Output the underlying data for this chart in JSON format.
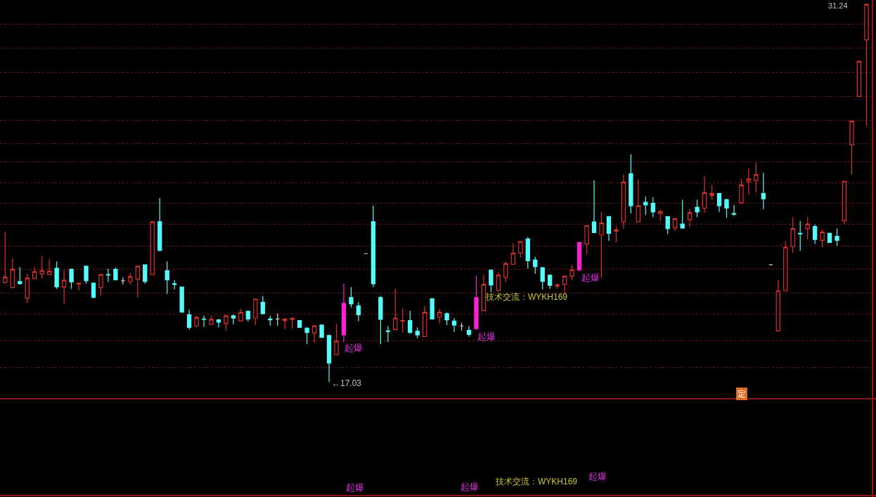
{
  "chart_data": {
    "type": "candlestick",
    "categories": [
      null,
      null,
      null,
      null,
      null,
      null,
      null,
      null,
      null,
      null,
      null,
      null,
      null,
      null,
      null,
      null,
      null,
      null,
      null,
      null,
      null,
      null,
      null,
      null,
      null,
      null,
      null,
      null,
      null,
      null,
      null,
      null,
      null,
      null,
      null,
      null,
      null,
      null,
      null,
      null,
      null,
      null,
      null,
      null,
      null,
      null,
      null,
      null,
      null,
      null,
      null,
      null,
      null,
      null,
      null,
      null,
      null,
      null,
      null,
      null,
      null,
      null,
      null,
      null,
      null,
      null,
      null,
      null,
      null,
      null,
      null,
      null,
      null,
      null,
      null,
      null,
      null,
      null,
      null,
      null,
      null,
      null,
      null,
      null,
      null,
      null,
      null,
      null,
      null,
      null,
      null,
      null,
      null,
      null,
      null,
      null,
      null,
      null,
      null,
      null,
      null,
      null,
      null,
      null,
      null,
      null,
      null,
      null,
      null,
      null,
      null,
      null,
      null,
      null,
      null,
      null,
      null,
      null
    ],
    "ohlc": [
      [
        20.77,
        22.67,
        20.73,
        20.97
      ],
      [
        20.58,
        21.69,
        20.58,
        21.27
      ],
      [
        20.81,
        21.35,
        20.7,
        20.73
      ],
      [
        20.18,
        21.1,
        19.99,
        20.94
      ],
      [
        20.92,
        21.36,
        20.9,
        21.18
      ],
      [
        21.1,
        21.76,
        20.92,
        21.22
      ],
      [
        21.07,
        21.66,
        21.07,
        21.2
      ],
      [
        21.31,
        21.56,
        20.53,
        20.61
      ],
      [
        20.61,
        21.24,
        19.97,
        20.86
      ],
      [
        21.27,
        21.29,
        20.53,
        20.79
      ],
      [
        20.72,
        20.75,
        20.47,
        20.75
      ],
      [
        21.39,
        21.39,
        20.73,
        20.84
      ],
      [
        20.75,
        20.77,
        20.18,
        20.21
      ],
      [
        20.58,
        21.1,
        20.29,
        21.07
      ],
      [
        21.07,
        21.29,
        20.79,
        21.05
      ],
      [
        21.27,
        21.33,
        20.86,
        20.87
      ],
      [
        20.84,
        20.96,
        20.7,
        20.84
      ],
      [
        20.81,
        21.13,
        20.7,
        20.99
      ],
      [
        20.9,
        21.39,
        20.21,
        21.39
      ],
      [
        21.44,
        21.46,
        20.73,
        20.81
      ],
      [
        21.07,
        23.06,
        21.07,
        23.06
      ],
      [
        23.06,
        23.95,
        21.94,
        21.98
      ],
      [
        21.22,
        21.56,
        20.35,
        20.87
      ],
      [
        20.73,
        20.86,
        20.51,
        20.7
      ],
      [
        20.6,
        20.6,
        19.66,
        19.66
      ],
      [
        19.56,
        19.75,
        19.0,
        19.08
      ],
      [
        19.14,
        19.52,
        19.08,
        19.46
      ],
      [
        19.4,
        19.52,
        19.11,
        19.39
      ],
      [
        19.2,
        19.52,
        19.2,
        19.39
      ],
      [
        19.37,
        19.39,
        19.08,
        19.28
      ],
      [
        19.23,
        19.56,
        18.97,
        19.52
      ],
      [
        19.52,
        19.56,
        19.2,
        19.43
      ],
      [
        19.32,
        19.78,
        19.32,
        19.65
      ],
      [
        19.69,
        19.71,
        19.3,
        19.4
      ],
      [
        19.43,
        20.16,
        19.17,
        20.15
      ],
      [
        20.03,
        20.27,
        19.58,
        19.6
      ],
      [
        19.4,
        19.52,
        19.14,
        19.37
      ],
      [
        19.4,
        19.6,
        19.14,
        19.4
      ],
      [
        19.34,
        19.4,
        19.02,
        19.4
      ],
      [
        19.39,
        19.43,
        19.04,
        19.43
      ],
      [
        19.34,
        19.36,
        19.06,
        19.08
      ],
      [
        19.06,
        19.08,
        18.45,
        18.89
      ],
      [
        18.87,
        19.17,
        18.52,
        19.14
      ],
      [
        19.17,
        19.2,
        18.69,
        18.71
      ],
      [
        18.78,
        18.8,
        17.03,
        17.74
      ],
      [
        18.05,
        19.2,
        18.05,
        18.57
      ],
      [
        18.8,
        20.73,
        18.52,
        19.99
      ],
      [
        20.21,
        20.6,
        19.84,
        19.97
      ],
      [
        19.89,
        20.03,
        19.32,
        19.56
      ],
      [
        21.86,
        21.86,
        21.86,
        21.86
      ],
      [
        23.06,
        23.66,
        20.6,
        20.73
      ],
      [
        20.21,
        20.27,
        18.45,
        19.39
      ],
      [
        18.95,
        19.13,
        18.54,
        18.93
      ],
      [
        19.0,
        20.53,
        19.0,
        19.43
      ],
      [
        19.32,
        19.8,
        18.89,
        19.34
      ],
      [
        19.34,
        19.71,
        18.85,
        18.89
      ],
      [
        18.94,
        19.08,
        18.68,
        18.8
      ],
      [
        18.74,
        19.89,
        18.74,
        19.65
      ],
      [
        20.16,
        20.18,
        19.39,
        19.4
      ],
      [
        19.47,
        19.78,
        19.23,
        19.65
      ],
      [
        19.6,
        19.65,
        19.17,
        19.37
      ],
      [
        19.32,
        19.43,
        18.91,
        19.17
      ],
      [
        19.14,
        19.26,
        18.97,
        19.14
      ],
      [
        18.97,
        19.14,
        18.74,
        18.82
      ],
      [
        19.04,
        21.03,
        19.0,
        20.21
      ],
      [
        19.71,
        21.07,
        19.71,
        20.7
      ],
      [
        21.24,
        21.24,
        20.42,
        20.68
      ],
      [
        20.47,
        21.16,
        20.47,
        21.05
      ],
      [
        20.96,
        21.56,
        20.79,
        21.48
      ],
      [
        21.46,
        22.24,
        21.46,
        21.88
      ],
      [
        21.88,
        22.33,
        21.72,
        22.31
      ],
      [
        22.41,
        22.48,
        21.29,
        21.59
      ],
      [
        21.62,
        21.74,
        21.1,
        21.37
      ],
      [
        21.33,
        21.36,
        20.51,
        20.81
      ],
      [
        21.05,
        21.05,
        20.53,
        20.67
      ],
      [
        20.64,
        20.73,
        20.53,
        20.68
      ],
      [
        20.7,
        21.03,
        20.35,
        21.01
      ],
      [
        21.01,
        21.44,
        20.86,
        21.24
      ],
      [
        21.24,
        22.28,
        21.2,
        22.28
      ],
      [
        22.22,
        22.92,
        21.84,
        22.91
      ],
      [
        23.05,
        24.61,
        22.65,
        22.65
      ],
      [
        22.56,
        23.44,
        20.95,
        23.01
      ],
      [
        23.25,
        23.27,
        22.34,
        22.62
      ],
      [
        22.71,
        22.88,
        22.28,
        22.75
      ],
      [
        23.05,
        24.84,
        22.8,
        24.55
      ],
      [
        24.87,
        25.6,
        23.37,
        23.66
      ],
      [
        23.05,
        24.65,
        23.05,
        23.66
      ],
      [
        23.79,
        24.01,
        23.31,
        23.69
      ],
      [
        23.75,
        23.98,
        23.23,
        23.43
      ],
      [
        23.36,
        23.51,
        23.1,
        23.44
      ],
      [
        23.25,
        23.27,
        22.6,
        22.8
      ],
      [
        22.82,
        23.2,
        22.71,
        23.17
      ],
      [
        22.97,
        23.88,
        22.82,
        22.82
      ],
      [
        23.14,
        23.53,
        22.86,
        23.4
      ],
      [
        23.6,
        23.89,
        23.23,
        23.43
      ],
      [
        23.57,
        24.78,
        23.4,
        24.15
      ],
      [
        24.05,
        24.44,
        23.88,
        24.12
      ],
      [
        24.12,
        24.12,
        23.43,
        23.66
      ],
      [
        23.89,
        23.92,
        23.2,
        23.57
      ],
      [
        23.37,
        23.69,
        23.27,
        23.34
      ],
      [
        23.77,
        24.67,
        23.72,
        24.44
      ],
      [
        24.57,
        25.07,
        24.09,
        24.67
      ],
      [
        24.61,
        25.28,
        24.15,
        24.83
      ],
      [
        24.12,
        24.9,
        23.53,
        23.92
      ],
      [
        21.44,
        21.44,
        21.44,
        21.44
      ],
      [
        18.95,
        20.87,
        18.95,
        20.46
      ],
      [
        20.46,
        22.32,
        20.46,
        22.1
      ],
      [
        22.13,
        23.23,
        21.89,
        22.8
      ],
      [
        22.62,
        23.08,
        21.96,
        22.6
      ],
      [
        22.8,
        23.23,
        22.39,
        22.97
      ],
      [
        22.88,
        22.94,
        22.22,
        22.39
      ],
      [
        22.36,
        22.77,
        22.1,
        22.67
      ],
      [
        22.62,
        22.65,
        22.28,
        22.28
      ],
      [
        22.51,
        22.8,
        22.15,
        22.36
      ],
      [
        23.1,
        24.58,
        22.97,
        24.58
      ],
      [
        25.95,
        26.84,
        24.84,
        26.84
      ],
      [
        27.77,
        29.09,
        27.77,
        29.09
      ],
      [
        29.9,
        31.24,
        26.65,
        31.24
      ]
    ],
    "colors": [
      "#e0302a",
      "#e0302a",
      "#54fcfc",
      "#e0302a",
      "#e0302a",
      "#e0302a",
      "#e0302a",
      "#54fcfc",
      "#e0302a",
      "#54fcfc",
      "#e0302a",
      "#54fcfc",
      "#54fcfc",
      "#e0302a",
      "#54fcfc",
      "#54fcfc",
      "#d8d8d8",
      "#e0302a",
      "#e0302a",
      "#54fcfc",
      "#e0302a",
      "#54fcfc",
      "#54fcfc",
      "#54fcfc",
      "#54fcfc",
      "#54fcfc",
      "#e0302a",
      "#54fcfc",
      "#e0302a",
      "#54fcfc",
      "#e0302a",
      "#54fcfc",
      "#e0302a",
      "#54fcfc",
      "#e0302a",
      "#54fcfc",
      "#54fcfc",
      "#d8d8d8",
      "#e0302a",
      "#e0302a",
      "#54fcfc",
      "#54fcfc",
      "#e0302a",
      "#54fcfc",
      "#54fcfc",
      "#e0302a",
      "#ff22cc",
      "#54fcfc",
      "#54fcfc",
      "#d8d8d8",
      "#54fcfc",
      "#54fcfc",
      "#54fcfc",
      "#e0302a",
      "#e0302a",
      "#54fcfc",
      "#54fcfc",
      "#e0302a",
      "#54fcfc",
      "#e0302a",
      "#54fcfc",
      "#54fcfc",
      "#d8d8d8",
      "#54fcfc",
      "#ff22cc",
      "#e0302a",
      "#54fcfc",
      "#e0302a",
      "#e0302a",
      "#e0302a",
      "#e0302a",
      "#54fcfc",
      "#54fcfc",
      "#54fcfc",
      "#54fcfc",
      "#e0302a",
      "#e0302a",
      "#e0302a",
      "#ff22cc",
      "#e0302a",
      "#54fcfc",
      "#e0302a",
      "#54fcfc",
      "#e0302a",
      "#e0302a",
      "#54fcfc",
      "#e0302a",
      "#54fcfc",
      "#54fcfc",
      "#e0302a",
      "#54fcfc",
      "#e0302a",
      "#54fcfc",
      "#e0302a",
      "#54fcfc",
      "#e0302a",
      "#e0302a",
      "#54fcfc",
      "#54fcfc",
      "#54fcfc",
      "#e0302a",
      "#e0302a",
      "#e0302a",
      "#54fcfc",
      "#d8d8d8",
      "#e0302a",
      "#e0302a",
      "#e0302a",
      "#54fcfc",
      "#e0302a",
      "#54fcfc",
      "#e0302a",
      "#54fcfc",
      "#54fcfc",
      "#e0302a",
      "#e0302a",
      "#e0302a",
      "#e0302a"
    ],
    "ylim": [
      16.4,
      31.4
    ],
    "yticks": [
      {
        "value": 17.58,
        "label": null
      },
      {
        "value": 18.59,
        "label": null
      },
      {
        "value": 19.58,
        "label": null
      },
      {
        "value": 20.38,
        "label": null
      },
      {
        "value": 21.26,
        "label": null
      },
      {
        "value": 22.14,
        "label": null
      },
      {
        "value": 22.97,
        "label": null
      },
      {
        "value": 23.75,
        "label": null
      },
      {
        "value": 24.53,
        "label": null
      },
      {
        "value": 25.31,
        "label": null
      },
      {
        "value": 26.01,
        "label": null
      },
      {
        "value": 26.86,
        "label": null
      },
      {
        "value": 27.77,
        "label": null
      },
      {
        "value": 28.68,
        "label": null
      },
      {
        "value": 29.58,
        "label": null
      },
      {
        "value": 30.49,
        "label": null
      }
    ],
    "grid": "y",
    "tick_labels": false,
    "annotations": [
      "起爆",
      "起爆",
      "起爆",
      "技术交流：WYKH169",
      "←17.03",
      "31.24",
      "定",
      "起爆",
      "起爆",
      "起爆",
      "技术交流：WYKH169"
    ]
  }
}
